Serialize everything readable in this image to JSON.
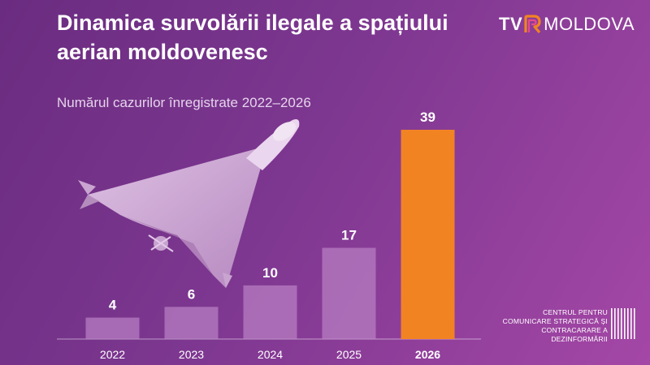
{
  "header": {
    "title": "Dinamica survolării ilegale a spațiului aerian moldovenesc",
    "subtitle": "Numărul cazurilor înregistrate 2022–2026"
  },
  "logo": {
    "tv": "TV",
    "name": "MOLDOVA"
  },
  "footer": {
    "line1": "CENTRUL PENTRU",
    "line2": "COMUNICARE STRATEGICĂ ȘI",
    "line3": "CONTRACARARE A DEZINFORMĂRII"
  },
  "colors": {
    "bar": "#bb82c4",
    "highlight": "#f28322",
    "text": "#ffffff"
  },
  "chart_data": {
    "type": "bar",
    "title": "Dinamica survolării ilegale a spațiului aerian moldovenesc",
    "subtitle": "Numărul cazurilor înregistrate 2022–2026",
    "categories": [
      "2022",
      "2023",
      "2024",
      "2025",
      "2026"
    ],
    "values": [
      4,
      6,
      10,
      17,
      39
    ],
    "highlight_index": 4,
    "ylim": [
      0,
      40
    ],
    "grid": false,
    "data_labels": true
  }
}
